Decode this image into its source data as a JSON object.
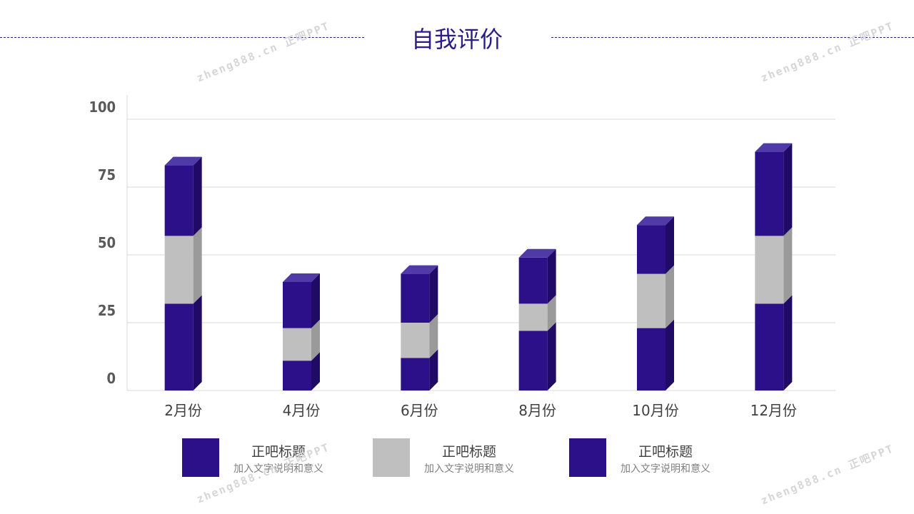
{
  "page": {
    "title": "自我评价",
    "watermark": "zheng888.cn 正吧PPT"
  },
  "colors": {
    "purple": "#2b1089",
    "purple_top": "#4f3aa8",
    "purple_side": "#1f0a66",
    "gray": "#bfbfbf",
    "gray_top": "#d9d9d9",
    "gray_side": "#9a9a9a",
    "grid": "#d9d9d9",
    "axis_text": "#595959"
  },
  "chart_data": {
    "type": "bar",
    "stacked": true,
    "style": "3d-column",
    "categories": [
      "2月份",
      "4月份",
      "6月份",
      "8月份",
      "10月份",
      "12月份"
    ],
    "series": [
      {
        "values": [
          32,
          11,
          12,
          22,
          23,
          32
        ]
      },
      {
        "values": [
          25,
          12,
          13,
          10,
          20,
          25
        ]
      },
      {
        "values": [
          26,
          17,
          18,
          17,
          18,
          31
        ]
      }
    ],
    "yticks": [
      0,
      25,
      50,
      75,
      100
    ],
    "ylim": [
      0,
      100
    ],
    "grid": true
  },
  "legend": [
    {
      "title": "正吧标题",
      "desc": "加入文字说明和意义",
      "color": "#2b1089"
    },
    {
      "title": "正吧标题",
      "desc": "加入文字说明和意义",
      "color": "#bfbfbf"
    },
    {
      "title": "正吧标题",
      "desc": "加入文字说明和意义",
      "color": "#2b1089"
    }
  ]
}
